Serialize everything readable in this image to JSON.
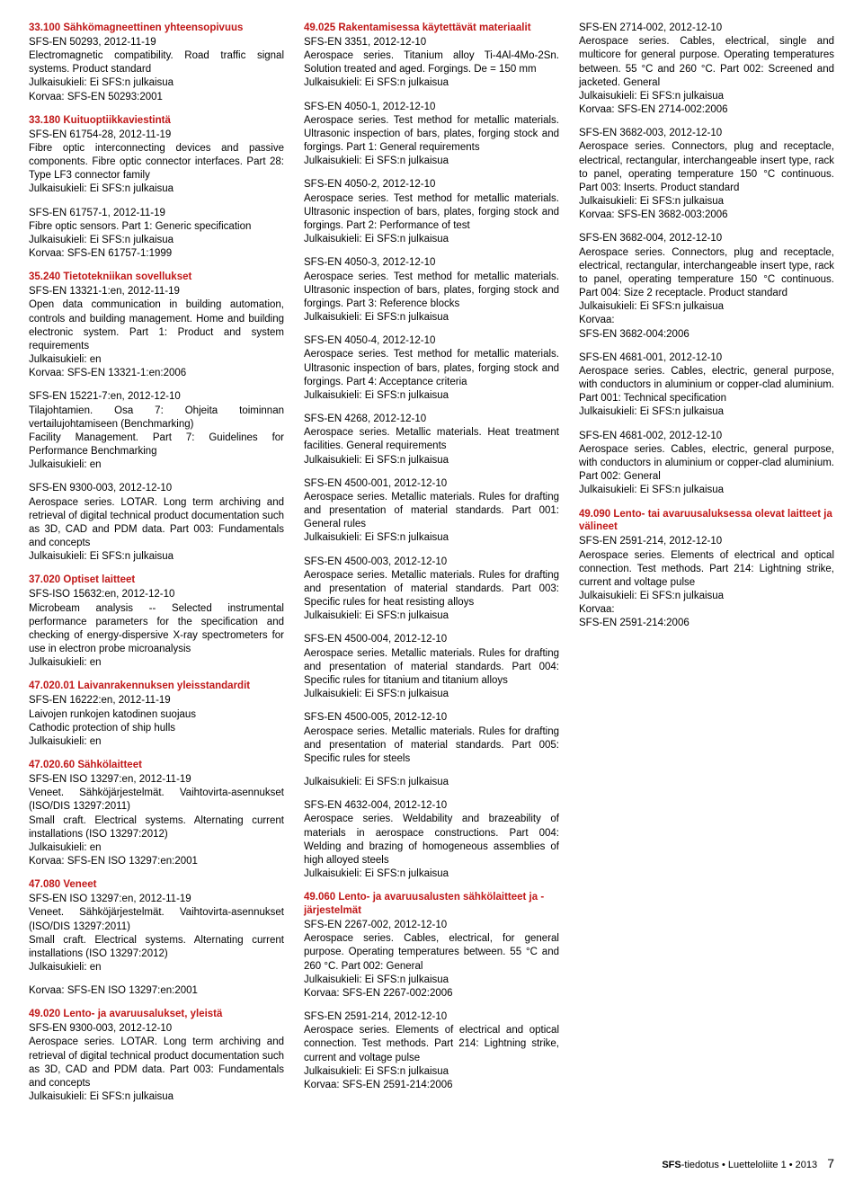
{
  "footer": {
    "label": "SFS-tiedotus • Luetteloliite 1 • 2013",
    "page": "7"
  },
  "entries": [
    {
      "head": "33.100 Sähkömagneettinen yhteensopivuus",
      "ref": "SFS-EN 50293, 2012-11-19",
      "desc": "Electromagnetic compatibility. Road traffic signal systems. Product standard",
      "pub": "Julkaisukieli: Ei SFS:n julkaisua",
      "korvaa": "Korvaa: SFS-EN 50293:2001"
    },
    {
      "head": "33.180 Kuituoptiikkaviestintä",
      "ref": "SFS-EN 61754-28, 2012-11-19",
      "desc": "Fibre optic interconnecting devices and passive components. Fibre optic connector interfaces. Part 28: Type LF3 connector family",
      "pub": "Julkaisukieli: Ei SFS:n julkaisua"
    },
    {
      "ref": "SFS-EN 61757-1, 2012-11-19",
      "desc": "Fibre optic sensors. Part 1: Generic specification",
      "pub": "Julkaisukieli: Ei SFS:n julkaisua",
      "korvaa": "Korvaa: SFS-EN 61757-1:1999"
    },
    {
      "head": "35.240 Tietotekniikan sovellukset",
      "ref": "SFS-EN 13321-1:en, 2012-11-19",
      "desc": "Open data communication in building automation, controls and building management. Home and building electronic system. Part 1: Product and system requirements",
      "pub": "Julkaisukieli: en",
      "korvaa": "Korvaa: SFS-EN 13321-1:en:2006"
    },
    {
      "ref": "SFS-EN 15221-7:en, 2012-12-10",
      "desc": "Tilajohtamien. Osa 7: Ohjeita toiminnan vertailujohtamiseen (Benchmarking)\nFacility Management. Part 7: Guidelines for Performance Benchmarking",
      "pub": "Julkaisukieli: en"
    },
    {
      "ref": "SFS-EN 9300-003, 2012-12-10",
      "desc": "Aerospace series. LOTAR. Long term archiving and retrieval of digital technical product documentation such as 3D, CAD and PDM data. Part 003: Fundamentals and concepts",
      "pub": "Julkaisukieli: Ei SFS:n julkaisua"
    },
    {
      "head": "37.020 Optiset laitteet",
      "ref": "SFS-ISO 15632:en, 2012-12-10",
      "desc": "Microbeam analysis -- Selected instrumental performance parameters for the specification and checking of energy-dispersive X-ray spectrometers for use in electron probe microanalysis",
      "pub": "Julkaisukieli: en"
    },
    {
      "head": "47.020.01 Laivanrakennuksen yleisstandardit",
      "ref": "SFS-EN 16222:en, 2012-11-19",
      "desc": "Laivojen runkojen katodinen suojaus\nCathodic protection of ship hulls",
      "pub": "Julkaisukieli: en"
    },
    {
      "head": "47.020.60 Sähkölaitteet",
      "ref": "SFS-EN ISO 13297:en, 2012-11-19",
      "desc": "Veneet. Sähköjärjestelmät. Vaihtovirta-asennukset (ISO/DIS 13297:2011)\nSmall craft. Electrical systems. Alternating current installations (ISO 13297:2012)",
      "pub": "Julkaisukieli: en",
      "korvaa": "Korvaa: SFS-EN ISO 13297:en:2001"
    },
    {
      "head": "47.080 Veneet",
      "ref": "SFS-EN ISO 13297:en, 2012-11-19",
      "desc": "Veneet. Sähköjärjestelmät. Vaihtovirta-asennukset (ISO/DIS 13297:2011)\nSmall craft. Electrical systems. Alternating current installations (ISO 13297:2012)",
      "pub": "Julkaisukieli: en"
    },
    {
      "ref": "",
      "desc": "",
      "pub": "",
      "korvaa": "Korvaa: SFS-EN ISO 13297:en:2001"
    },
    {
      "head": "49.020 Lento- ja avaruusalukset, yleistä",
      "ref": "SFS-EN 9300-003, 2012-12-10",
      "desc": "Aerospace series. LOTAR. Long term archiving and retrieval of digital technical product documentation such as 3D, CAD and PDM data. Part 003: Fundamentals and concepts",
      "pub": "Julkaisukieli: Ei SFS:n julkaisua"
    },
    {
      "head": "49.025 Rakentamisessa käytettävät materiaalit",
      "ref": "SFS-EN 3351, 2012-12-10",
      "desc": "Aerospace series. Titanium alloy Ti-4Al-4Mo-2Sn. Solution treated and aged. Forgings. De = 150 mm",
      "pub": "Julkaisukieli: Ei SFS:n julkaisua"
    },
    {
      "ref": "SFS-EN 4050-1, 2012-12-10",
      "desc": "Aerospace series. Test method for metallic materials. Ultrasonic inspection of bars, plates, forging stock and forgings. Part 1: General requirements",
      "pub": "Julkaisukieli: Ei SFS:n julkaisua"
    },
    {
      "ref": "SFS-EN 4050-2, 2012-12-10",
      "desc": "Aerospace series. Test method for metallic materials. Ultrasonic inspection of bars, plates, forging stock and forgings. Part 2: Performance of test",
      "pub": "Julkaisukieli: Ei SFS:n julkaisua"
    },
    {
      "ref": "SFS-EN 4050-3, 2012-12-10",
      "desc": "Aerospace series. Test method for metallic materials. Ultrasonic inspection of bars, plates, forging stock and forgings. Part 3: Reference blocks",
      "pub": "Julkaisukieli: Ei SFS:n julkaisua"
    },
    {
      "ref": "SFS-EN 4050-4, 2012-12-10",
      "desc": "Aerospace series. Test method for metallic materials. Ultrasonic inspection of bars, plates, forging stock and forgings. Part 4: Acceptance criteria",
      "pub": "Julkaisukieli: Ei SFS:n julkaisua"
    },
    {
      "ref": "SFS-EN 4268, 2012-12-10",
      "desc": "Aerospace series. Metallic materials. Heat treatment facilities. General requirements",
      "pub": "Julkaisukieli: Ei SFS:n julkaisua"
    },
    {
      "ref": "SFS-EN 4500-001, 2012-12-10",
      "desc": "Aerospace series. Metallic materials. Rules for drafting and presentation of material standards. Part 001: General rules",
      "pub": "Julkaisukieli: Ei SFS:n julkaisua"
    },
    {
      "ref": "SFS-EN 4500-003, 2012-12-10",
      "desc": "Aerospace series. Metallic materials. Rules for drafting and presentation of material standards. Part 003: Specific rules for heat resisting alloys",
      "pub": "Julkaisukieli: Ei SFS:n julkaisua"
    },
    {
      "ref": "SFS-EN 4500-004, 2012-12-10",
      "desc": "Aerospace series. Metallic materials. Rules for drafting and presentation of material standards. Part 004: Specific rules for titanium and titanium alloys",
      "pub": "Julkaisukieli: Ei SFS:n julkaisua"
    },
    {
      "ref": "SFS-EN 4500-005, 2012-12-10",
      "desc": "Aerospace series. Metallic materials. Rules for drafting and presentation of material standards. Part 005: Specific rules for steels"
    },
    {
      "ref": "",
      "desc": "",
      "pub": "Julkaisukieli: Ei SFS:n julkaisua"
    },
    {
      "ref": "SFS-EN 4632-004, 2012-12-10",
      "desc": "Aerospace series. Weldability and brazeability of materials in aerospace constructions. Part 004: Welding and brazing of homogeneous assemblies of high alloyed steels",
      "pub": "Julkaisukieli: Ei SFS:n julkaisua"
    },
    {
      "head": "49.060 Lento- ja avaruusalusten sähkölaitteet ja -järjestelmät",
      "ref": "SFS-EN 2267-002, 2012-12-10",
      "desc": "Aerospace series. Cables, electrical, for general purpose. Operating temperatures between. 55 °C and 260 °C. Part 002: General",
      "pub": "Julkaisukieli: Ei SFS:n julkaisua",
      "korvaa": "Korvaa: SFS-EN 2267-002:2006"
    },
    {
      "ref": "SFS-EN 2591-214, 2012-12-10",
      "desc": "Aerospace series. Elements of electrical and optical connection. Test methods. Part 214: Lightning strike, current and voltage pulse",
      "pub": "Julkaisukieli: Ei SFS:n julkaisua",
      "korvaa": "Korvaa: SFS-EN 2591-214:2006"
    },
    {
      "ref": "SFS-EN 2714-002, 2012-12-10",
      "desc": "Aerospace series. Cables, electrical, single and multicore for general purpose. Operating temperatures between. 55 °C and 260 °C. Part 002: Screened and jacketed. General",
      "pub": "Julkaisukieli: Ei SFS:n julkaisua",
      "korvaa": "Korvaa: SFS-EN 2714-002:2006"
    },
    {
      "ref": "SFS-EN 3682-003, 2012-12-10",
      "desc": "Aerospace series. Connectors, plug and receptacle, electrical, rectangular, interchangeable insert type, rack to panel, operating temperature 150 °C continuous. Part 003: Inserts. Product standard",
      "pub": "Julkaisukieli: Ei SFS:n julkaisua",
      "korvaa": "Korvaa: SFS-EN 3682-003:2006"
    },
    {
      "ref": "SFS-EN 3682-004, 2012-12-10",
      "desc": "Aerospace series. Connectors, plug and receptacle, electrical, rectangular, interchangeable insert type, rack to panel, operating temperature 150 °C continuous. Part 004: Size 2 receptacle. Product standard",
      "pub": "Julkaisukieli: Ei SFS:n julkaisua",
      "korvaa": "Korvaa:\nSFS-EN 3682-004:2006"
    },
    {
      "ref": "SFS-EN 4681-001, 2012-12-10",
      "desc": "Aerospace series. Cables, electric, general purpose, with conductors in aluminium or copper-clad aluminium. Part 001: Technical specification",
      "pub": "Julkaisukieli: Ei SFS:n julkaisua"
    },
    {
      "ref": "SFS-EN 4681-002, 2012-12-10",
      "desc": "Aerospace series. Cables, electric, general purpose, with conductors in aluminium or copper-clad aluminium. Part 002: General",
      "pub": "Julkaisukieli: Ei SFS:n julkaisua"
    },
    {
      "head": "49.090 Lento- tai avaruusaluksessa olevat laitteet ja välineet",
      "ref": "SFS-EN 2591-214, 2012-12-10",
      "desc": "Aerospace series. Elements of electrical and optical connection. Test methods. Part 214: Lightning strike, current and voltage pulse",
      "pub": "Julkaisukieli: Ei SFS:n julkaisua",
      "korvaa": "Korvaa:\nSFS-EN 2591-214:2006"
    }
  ]
}
